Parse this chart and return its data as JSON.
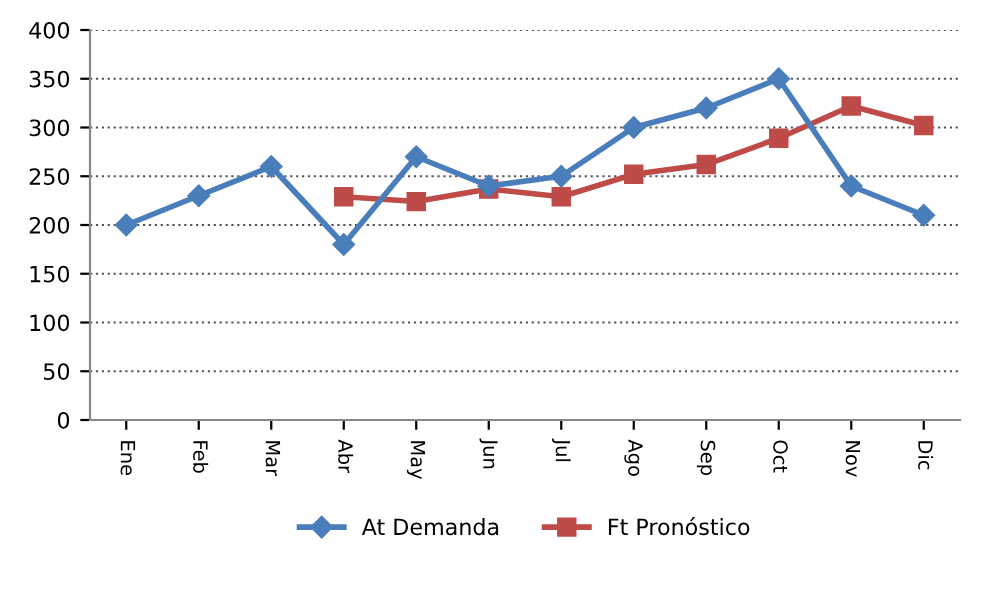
{
  "chart_data": {
    "type": "line",
    "categories": [
      "Ene",
      "Feb",
      "Mar",
      "Abr",
      "May",
      "Jun",
      "Jul",
      "Ago",
      "Sep",
      "Oct",
      "Nov",
      "Dic"
    ],
    "series": [
      {
        "name": "At Demanda",
        "color": "#4a7ebb",
        "marker": "diamond",
        "values": [
          200,
          230,
          260,
          180,
          270,
          240,
          250,
          300,
          320,
          350,
          240,
          210
        ]
      },
      {
        "name": "Ft Pronóstico",
        "color": "#be4b48",
        "marker": "square",
        "values": [
          null,
          null,
          null,
          229,
          224,
          237,
          229,
          252,
          262,
          289,
          322,
          302
        ]
      }
    ],
    "ylim": [
      0,
      400
    ],
    "yticks": [
      0,
      50,
      100,
      150,
      200,
      250,
      300,
      350,
      400
    ],
    "grid": "y",
    "legend": "bottom",
    "line_style": "solid"
  }
}
